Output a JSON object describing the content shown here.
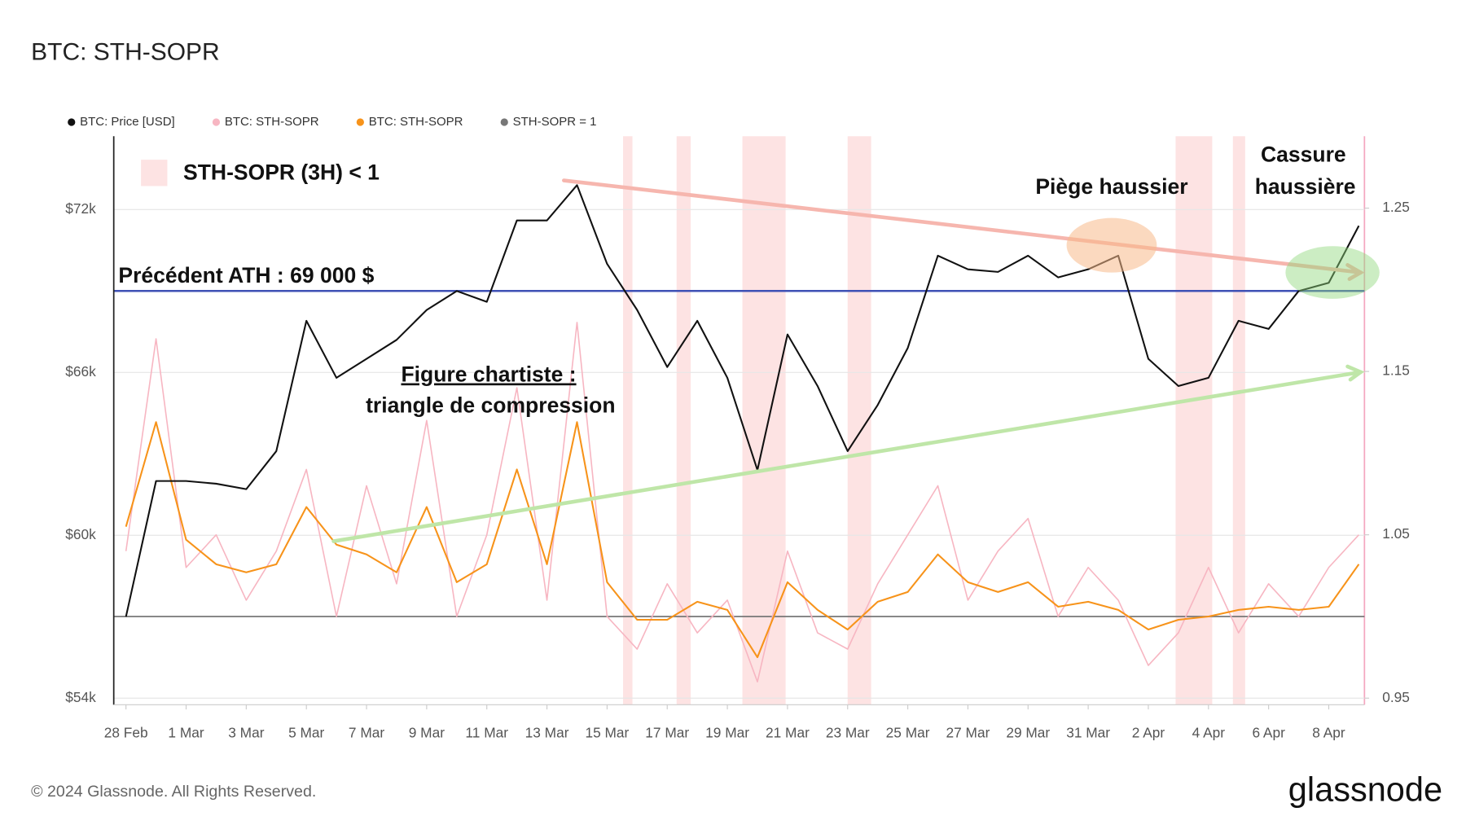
{
  "chart_data": {
    "type": "line",
    "title": "BTC: STH-SOPR",
    "x": [
      "28 Feb",
      "29 Feb",
      "1 Mar",
      "2 Mar",
      "3 Mar",
      "4 Mar",
      "5 Mar",
      "6 Mar",
      "7 Mar",
      "8 Mar",
      "9 Mar",
      "10 Mar",
      "11 Mar",
      "12 Mar",
      "13 Mar",
      "14 Mar",
      "15 Mar",
      "16 Mar",
      "17 Mar",
      "18 Mar",
      "19 Mar",
      "20 Mar",
      "21 Mar",
      "22 Mar",
      "23 Mar",
      "24 Mar",
      "25 Mar",
      "26 Mar",
      "27 Mar",
      "28 Mar",
      "29 Mar",
      "30 Mar",
      "31 Mar",
      "1 Apr",
      "2 Apr",
      "3 Apr",
      "4 Apr",
      "5 Apr",
      "6 Apr",
      "7 Apr",
      "8 Apr",
      "9 Apr"
    ],
    "xticks": [
      "28 Feb",
      "1 Mar",
      "3 Mar",
      "5 Mar",
      "7 Mar",
      "9 Mar",
      "11 Mar",
      "13 Mar",
      "15 Mar",
      "17 Mar",
      "19 Mar",
      "21 Mar",
      "23 Mar",
      "25 Mar",
      "27 Mar",
      "29 Mar",
      "31 Mar",
      "2 Apr",
      "4 Apr",
      "6 Apr",
      "8 Apr"
    ],
    "ylim": [
      54000,
      74700
    ],
    "yticks": [
      {
        "value": 54000,
        "label": "$54k"
      },
      {
        "value": 60000,
        "label": "$60k"
      },
      {
        "value": 66000,
        "label": "$66k"
      },
      {
        "value": 72000,
        "label": "$72k"
      }
    ],
    "y2lim": [
      0.95,
      1.294
    ],
    "y2ticks": [
      0.95,
      1.05,
      1.15,
      1.25
    ],
    "grid": true,
    "series": [
      {
        "name": "BTC: STH-SOPR",
        "color": "#f7b6c2",
        "axis": "y2",
        "values": [
          1.04,
          1.17,
          1.03,
          1.05,
          1.01,
          1.04,
          1.09,
          1.0,
          1.08,
          1.02,
          1.12,
          1.0,
          1.05,
          1.14,
          1.01,
          1.18,
          1.0,
          0.98,
          1.02,
          0.99,
          1.01,
          0.96,
          1.04,
          0.99,
          0.98,
          1.02,
          1.05,
          1.08,
          1.01,
          1.04,
          1.06,
          1.0,
          1.03,
          1.01,
          0.97,
          0.99,
          1.03,
          0.99,
          1.02,
          1.0,
          1.03,
          1.05
        ]
      },
      {
        "name": "BTC: STH-SOPR",
        "color": "#f7931a",
        "axis": "y2",
        "values": [
          1.055,
          1.119,
          1.047,
          1.032,
          1.027,
          1.032,
          1.067,
          1.044,
          1.038,
          1.027,
          1.067,
          1.021,
          1.032,
          1.09,
          1.032,
          1.119,
          1.021,
          0.998,
          0.998,
          1.009,
          1.004,
          0.975,
          1.021,
          1.004,
          0.992,
          1.009,
          1.015,
          1.038,
          1.021,
          1.015,
          1.021,
          1.006,
          1.009,
          1.004,
          0.992,
          0.998,
          1.0,
          1.004,
          1.006,
          1.004,
          1.006,
          1.032
        ]
      },
      {
        "name": "BTC: Price [USD]",
        "color": "#111111",
        "values": [
          57000,
          62000,
          62000,
          61900,
          61700,
          63100,
          67900,
          65800,
          66500,
          67200,
          68300,
          69000,
          68600,
          71600,
          71600,
          72900,
          70000,
          68300,
          66200,
          67900,
          65800,
          62400,
          67400,
          65500,
          63100,
          64800,
          66900,
          70300,
          69800,
          69700,
          70300,
          69500,
          69800,
          70300,
          66500,
          65500,
          65800,
          67900,
          67600,
          69000,
          69300,
          71400
        ]
      }
    ],
    "legend_order": [
      2,
      0,
      1
    ],
    "reference_lines": [
      {
        "name": "STH-SOPR = 1",
        "value": 1,
        "axis": "y2",
        "color": "#777777"
      },
      {
        "name": "Précédent ATH : 69 000 $",
        "value": 69000,
        "color": "#3f51b5"
      }
    ],
    "shaded_legend": "STH-SOPR (3H) < 1",
    "annotations": [
      "Figure chartiste :",
      "triangle de compression",
      "Piège haussier",
      "Cassure",
      "haussière"
    ]
  },
  "footer": {
    "copyright": "© 2024 Glassnode. All Rights Reserved.",
    "logo": "glassnode"
  }
}
